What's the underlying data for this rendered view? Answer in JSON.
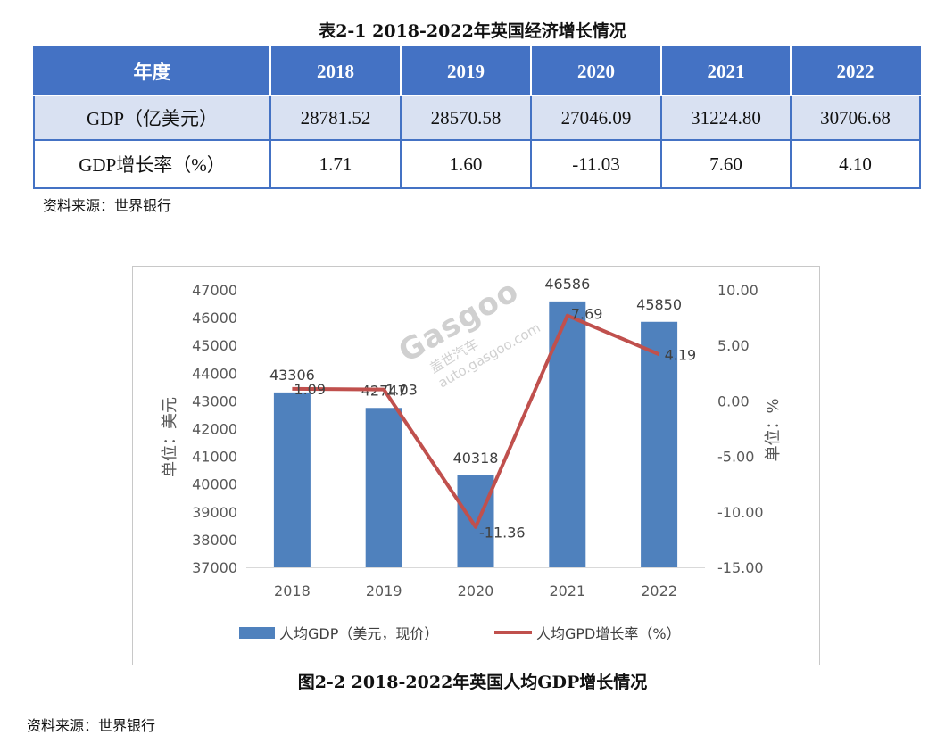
{
  "table_title": "表2-1    2018-2022年英国经济增长情况",
  "table": {
    "header": [
      "年度",
      "2018",
      "2019",
      "2020",
      "2021",
      "2022"
    ],
    "rows": [
      [
        "GDP（亿美元）",
        "28781.52",
        "28570.58",
        "27046.09",
        "31224.80",
        "30706.68"
      ],
      [
        "GDP增长率（%）",
        "1.71",
        "1.60",
        "-11.03",
        "7.60",
        "4.10"
      ]
    ]
  },
  "source_1": "资料来源：世界银行",
  "chart_caption": "图2-2    2018-2022年英国人均GDP增长情况",
  "source_2": "资料来源：世界银行",
  "watermark": {
    "text": "Gasgoo",
    "cn": "盖世汽车",
    "url": "auto.gasgoo.com"
  },
  "colors": {
    "bar": "#4f81bd",
    "line": "#c0504d",
    "header": "#4472c4",
    "row_alt": "#d9e1f2"
  },
  "chart_data": {
    "type": "bar+line",
    "categories": [
      "2018",
      "2019",
      "2020",
      "2021",
      "2022"
    ],
    "series": [
      {
        "name": "人均GDP（美元，现价）",
        "type": "bar",
        "axis": "left",
        "values": [
          43306,
          42747,
          40318,
          46586,
          45850
        ],
        "labels": [
          "43306",
          "42747",
          "40318",
          "46586",
          "45850"
        ]
      },
      {
        "name": "人均GPD增长率（%）",
        "type": "line",
        "axis": "right",
        "values": [
          1.09,
          1.03,
          -11.36,
          7.69,
          4.19
        ],
        "labels": [
          "1.09",
          "1.03",
          "-11.36",
          "7.69",
          "4.19"
        ]
      }
    ],
    "y_left": {
      "label": "单位：美元",
      "min": 37000,
      "max": 47000,
      "step": 1000,
      "ticks": [
        "37000",
        "38000",
        "39000",
        "40000",
        "41000",
        "42000",
        "43000",
        "44000",
        "45000",
        "46000",
        "47000"
      ]
    },
    "y_right": {
      "label": "单位：%",
      "min": -15,
      "max": 10,
      "step": 5,
      "ticks": [
        "-15.00",
        "-10.00",
        "-5.00",
        "0.00",
        "5.00",
        "10.00"
      ]
    },
    "grid": false,
    "legend": "bottom"
  }
}
